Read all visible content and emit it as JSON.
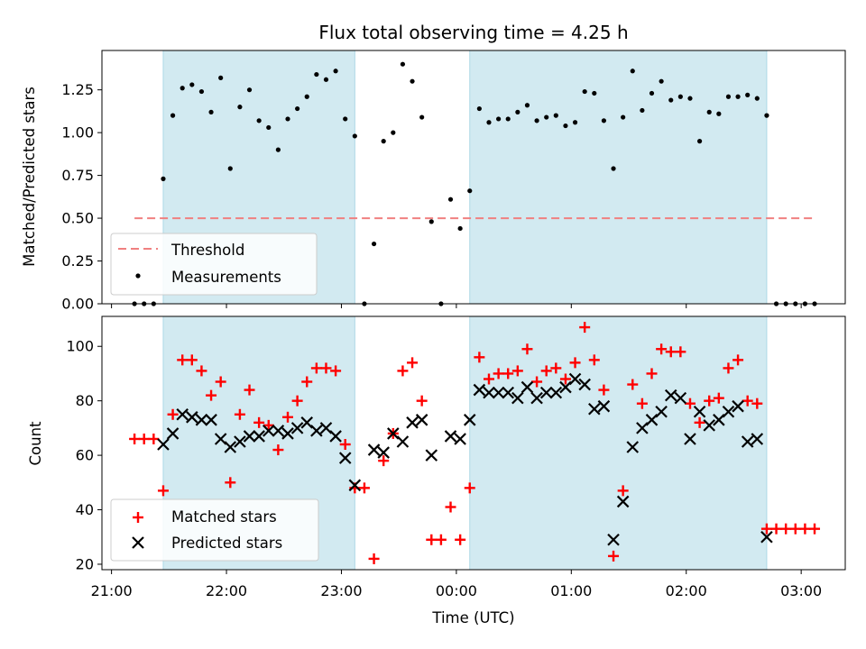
{
  "chart_data": [
    {
      "type": "scatter",
      "title": "Flux total observing time = 4.25 h",
      "ylabel": "Matched/Predicted stars",
      "xlabel": "",
      "xlim": [
        "20:55",
        "03:23"
      ],
      "ylim": [
        0,
        1.48
      ],
      "yticks": [
        "0.00",
        "0.25",
        "0.50",
        "0.75",
        "1.00",
        "1.25"
      ],
      "shaded_intervals": [
        [
          "21:27",
          "23:07"
        ],
        [
          "00:07",
          "02:42"
        ]
      ],
      "shade_color": "#add8e6",
      "threshold": {
        "name": "Threshold",
        "y": 0.5,
        "x_range": [
          "21:12",
          "03:07"
        ],
        "color": "#f08080",
        "style": "dashed"
      },
      "legend": {
        "placement": "lower left",
        "entries": [
          "Threshold",
          "Measurements"
        ]
      },
      "series": [
        {
          "name": "Measurements",
          "marker": "dot",
          "color": "#000000",
          "points": [
            [
              "21:12",
              0.0
            ],
            [
              "21:17",
              0.0
            ],
            [
              "21:22",
              0.0
            ],
            [
              "21:27",
              0.73
            ],
            [
              "21:32",
              1.1
            ],
            [
              "21:37",
              1.26
            ],
            [
              "21:42",
              1.28
            ],
            [
              "21:47",
              1.24
            ],
            [
              "21:52",
              1.12
            ],
            [
              "21:57",
              1.32
            ],
            [
              "22:02",
              0.79
            ],
            [
              "22:07",
              1.15
            ],
            [
              "22:12",
              1.25
            ],
            [
              "22:17",
              1.07
            ],
            [
              "22:22",
              1.03
            ],
            [
              "22:27",
              0.9
            ],
            [
              "22:32",
              1.08
            ],
            [
              "22:37",
              1.14
            ],
            [
              "22:42",
              1.21
            ],
            [
              "22:47",
              1.34
            ],
            [
              "22:52",
              1.31
            ],
            [
              "22:57",
              1.36
            ],
            [
              "23:02",
              1.08
            ],
            [
              "23:07",
              0.98
            ],
            [
              "23:12",
              0.0
            ],
            [
              "23:17",
              0.35
            ],
            [
              "23:22",
              0.95
            ],
            [
              "23:27",
              1.0
            ],
            [
              "23:32",
              1.4
            ],
            [
              "23:37",
              1.3
            ],
            [
              "23:42",
              1.09
            ],
            [
              "23:47",
              0.48
            ],
            [
              "23:52",
              0.0
            ],
            [
              "23:57",
              0.61
            ],
            [
              "00:02",
              0.44
            ],
            [
              "00:07",
              0.66
            ],
            [
              "00:12",
              1.14
            ],
            [
              "00:17",
              1.06
            ],
            [
              "00:22",
              1.08
            ],
            [
              "00:27",
              1.08
            ],
            [
              "00:32",
              1.12
            ],
            [
              "00:37",
              1.16
            ],
            [
              "00:42",
              1.07
            ],
            [
              "00:47",
              1.09
            ],
            [
              "00:52",
              1.1
            ],
            [
              "00:57",
              1.04
            ],
            [
              "01:02",
              1.06
            ],
            [
              "01:07",
              1.24
            ],
            [
              "01:12",
              1.23
            ],
            [
              "01:17",
              1.07
            ],
            [
              "01:22",
              0.79
            ],
            [
              "01:27",
              1.09
            ],
            [
              "01:32",
              1.36
            ],
            [
              "01:37",
              1.13
            ],
            [
              "01:42",
              1.23
            ],
            [
              "01:47",
              1.3
            ],
            [
              "01:52",
              1.19
            ],
            [
              "01:57",
              1.21
            ],
            [
              "02:02",
              1.2
            ],
            [
              "02:07",
              0.95
            ],
            [
              "02:12",
              1.12
            ],
            [
              "02:17",
              1.11
            ],
            [
              "02:22",
              1.21
            ],
            [
              "02:27",
              1.21
            ],
            [
              "02:32",
              1.22
            ],
            [
              "02:37",
              1.2
            ],
            [
              "02:42",
              1.1
            ],
            [
              "02:47",
              0.0
            ],
            [
              "02:52",
              0.0
            ],
            [
              "02:57",
              0.0
            ],
            [
              "03:02",
              0.0
            ],
            [
              "03:07",
              0.0
            ]
          ]
        }
      ]
    },
    {
      "type": "scatter",
      "title": "",
      "ylabel": "Count",
      "xlabel": "Time (UTC)",
      "xlim": [
        "20:55",
        "03:23"
      ],
      "ylim": [
        18,
        111
      ],
      "yticks": [
        "20",
        "40",
        "60",
        "80",
        "100"
      ],
      "xticks": [
        "21:00",
        "22:00",
        "23:00",
        "00:00",
        "01:00",
        "02:00",
        "03:00"
      ],
      "shaded_intervals": [
        [
          "21:27",
          "23:07"
        ],
        [
          "00:07",
          "02:42"
        ]
      ],
      "shade_color": "#add8e6",
      "legend": {
        "placement": "lower left",
        "entries": [
          "Matched stars",
          "Predicted stars"
        ]
      },
      "series": [
        {
          "name": "Matched stars",
          "marker": "plus",
          "color": "#ff0000",
          "points": [
            [
              "21:12",
              66
            ],
            [
              "21:17",
              66
            ],
            [
              "21:22",
              66
            ],
            [
              "21:27",
              47
            ],
            [
              "21:32",
              75
            ],
            [
              "21:37",
              95
            ],
            [
              "21:42",
              95
            ],
            [
              "21:47",
              91
            ],
            [
              "21:52",
              82
            ],
            [
              "21:57",
              87
            ],
            [
              "22:02",
              50
            ],
            [
              "22:07",
              75
            ],
            [
              "22:12",
              84
            ],
            [
              "22:17",
              72
            ],
            [
              "22:22",
              71
            ],
            [
              "22:27",
              62
            ],
            [
              "22:32",
              74
            ],
            [
              "22:37",
              80
            ],
            [
              "22:42",
              87
            ],
            [
              "22:47",
              92
            ],
            [
              "22:52",
              92
            ],
            [
              "22:57",
              91
            ],
            [
              "23:02",
              64
            ],
            [
              "23:07",
              48
            ],
            [
              "23:12",
              48
            ],
            [
              "23:17",
              22
            ],
            [
              "23:22",
              58
            ],
            [
              "23:27",
              68
            ],
            [
              "23:32",
              91
            ],
            [
              "23:37",
              94
            ],
            [
              "23:42",
              80
            ],
            [
              "23:47",
              29
            ],
            [
              "23:52",
              29
            ],
            [
              "23:57",
              41
            ],
            [
              "00:02",
              29
            ],
            [
              "00:07",
              48
            ],
            [
              "00:12",
              96
            ],
            [
              "00:17",
              88
            ],
            [
              "00:22",
              90
            ],
            [
              "00:27",
              90
            ],
            [
              "00:32",
              91
            ],
            [
              "00:37",
              99
            ],
            [
              "00:42",
              87
            ],
            [
              "00:47",
              91
            ],
            [
              "00:52",
              92
            ],
            [
              "00:57",
              88
            ],
            [
              "01:02",
              94
            ],
            [
              "01:07",
              107
            ],
            [
              "01:12",
              95
            ],
            [
              "01:17",
              84
            ],
            [
              "01:22",
              23
            ],
            [
              "01:27",
              47
            ],
            [
              "01:32",
              86
            ],
            [
              "01:37",
              79
            ],
            [
              "01:42",
              90
            ],
            [
              "01:47",
              99
            ],
            [
              "01:52",
              98
            ],
            [
              "01:57",
              98
            ],
            [
              "02:02",
              79
            ],
            [
              "02:07",
              72
            ],
            [
              "02:12",
              80
            ],
            [
              "02:17",
              81
            ],
            [
              "02:22",
              92
            ],
            [
              "02:27",
              95
            ],
            [
              "02:32",
              80
            ],
            [
              "02:37",
              79
            ],
            [
              "02:42",
              33
            ],
            [
              "02:47",
              33
            ],
            [
              "02:52",
              33
            ],
            [
              "02:57",
              33
            ],
            [
              "03:02",
              33
            ],
            [
              "03:07",
              33
            ]
          ]
        },
        {
          "name": "Predicted stars",
          "marker": "x",
          "color": "#000000",
          "points": [
            [
              "21:27",
              64
            ],
            [
              "21:32",
              68
            ],
            [
              "21:37",
              75
            ],
            [
              "21:42",
              74
            ],
            [
              "21:47",
              73
            ],
            [
              "21:52",
              73
            ],
            [
              "21:57",
              66
            ],
            [
              "22:02",
              63
            ],
            [
              "22:07",
              65
            ],
            [
              "22:12",
              67
            ],
            [
              "22:17",
              67
            ],
            [
              "22:22",
              69
            ],
            [
              "22:27",
              69
            ],
            [
              "22:32",
              68
            ],
            [
              "22:37",
              70
            ],
            [
              "22:42",
              72
            ],
            [
              "22:47",
              69
            ],
            [
              "22:52",
              70
            ],
            [
              "22:57",
              67
            ],
            [
              "23:02",
              59
            ],
            [
              "23:07",
              49
            ],
            [
              "23:17",
              62
            ],
            [
              "23:22",
              61
            ],
            [
              "23:27",
              68
            ],
            [
              "23:32",
              65
            ],
            [
              "23:37",
              72
            ],
            [
              "23:42",
              73
            ],
            [
              "23:47",
              60
            ],
            [
              "23:57",
              67
            ],
            [
              "00:02",
              66
            ],
            [
              "00:07",
              73
            ],
            [
              "00:12",
              84
            ],
            [
              "00:17",
              83
            ],
            [
              "00:22",
              83
            ],
            [
              "00:27",
              83
            ],
            [
              "00:32",
              81
            ],
            [
              "00:37",
              85
            ],
            [
              "00:42",
              81
            ],
            [
              "00:47",
              83
            ],
            [
              "00:52",
              83
            ],
            [
              "00:57",
              85
            ],
            [
              "01:02",
              88
            ],
            [
              "01:07",
              86
            ],
            [
              "01:12",
              77
            ],
            [
              "01:17",
              78
            ],
            [
              "01:22",
              29
            ],
            [
              "01:27",
              43
            ],
            [
              "01:32",
              63
            ],
            [
              "01:37",
              70
            ],
            [
              "01:42",
              73
            ],
            [
              "01:47",
              76
            ],
            [
              "01:52",
              82
            ],
            [
              "01:57",
              81
            ],
            [
              "02:02",
              66
            ],
            [
              "02:07",
              76
            ],
            [
              "02:12",
              71
            ],
            [
              "02:17",
              73
            ],
            [
              "02:22",
              76
            ],
            [
              "02:27",
              78
            ],
            [
              "02:32",
              65
            ],
            [
              "02:37",
              66
            ],
            [
              "02:42",
              30
            ]
          ]
        }
      ]
    }
  ]
}
